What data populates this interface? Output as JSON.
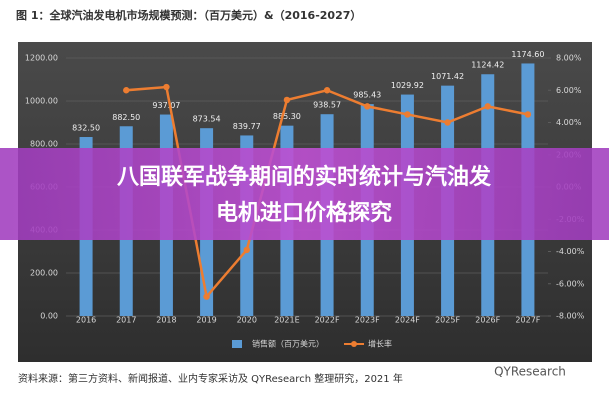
{
  "chart_data": {
    "type": "bar",
    "title": "图 1：全球汽油发电机市场规模预测：（百万美元）&（2016-2027）",
    "source": "资料来源：第三方资料、新闻报道、业内专家采访及 QYResearch 整理研究，2021 年",
    "categories": [
      "2016",
      "2017",
      "2018",
      "2019",
      "2020",
      "2021E",
      "2022F",
      "2023F",
      "2024F",
      "2025F",
      "2026F",
      "2027F"
    ],
    "series": [
      {
        "name": "销售额（百万美元）",
        "color": "#5b9bd5",
        "values": [
          832.5,
          882.5,
          937.07,
          873.54,
          839.77,
          885.3,
          938.57,
          985.43,
          1029.92,
          1071.42,
          1124.42,
          1174.6
        ],
        "value_labels": [
          "832.50",
          "882.50",
          "937.07",
          "873.54",
          "839.77",
          "885.30",
          "938.57",
          "985.43",
          "1029.92",
          "1071.42",
          "1124.42",
          "1174.60"
        ]
      },
      {
        "name": "增长率",
        "color": "#ed7d31",
        "type": "line",
        "axis": "y2",
        "values": [
          null,
          6.0,
          6.2,
          -6.8,
          -3.9,
          5.4,
          6.0,
          5.0,
          4.5,
          4.0,
          5.0,
          4.5
        ]
      }
    ],
    "ylim": [
      0,
      1200
    ],
    "yticks": [
      {
        "value": 0,
        "label": "0.00"
      },
      {
        "value": 200,
        "label": "200.00"
      },
      {
        "value": 400,
        "label": "400.00"
      },
      {
        "value": 600,
        "label": "600.00"
      },
      {
        "value": 800,
        "label": "800.00"
      },
      {
        "value": 1000,
        "label": "1000.00"
      },
      {
        "value": 1200,
        "label": "1200.00"
      }
    ],
    "y2lim": [
      -8,
      8
    ],
    "y2ticks": [
      {
        "value": -8,
        "label": "-8.00%"
      },
      {
        "value": -6,
        "label": "-6.00%"
      },
      {
        "value": -4,
        "label": "-4.00%"
      },
      {
        "value": -2,
        "label": "-2.00%"
      },
      {
        "value": 0,
        "label": "0.00%"
      },
      {
        "value": 2,
        "label": "2.00%"
      },
      {
        "value": 4,
        "label": "4.00%"
      },
      {
        "value": 6,
        "label": "6.00%"
      },
      {
        "value": 8,
        "label": "8.00%"
      }
    ],
    "grid": true
  },
  "banner": [
    "八国联军战争期间的实时统计与汽油发",
    "电机进口价格探究"
  ],
  "watermark": "QYResearch"
}
